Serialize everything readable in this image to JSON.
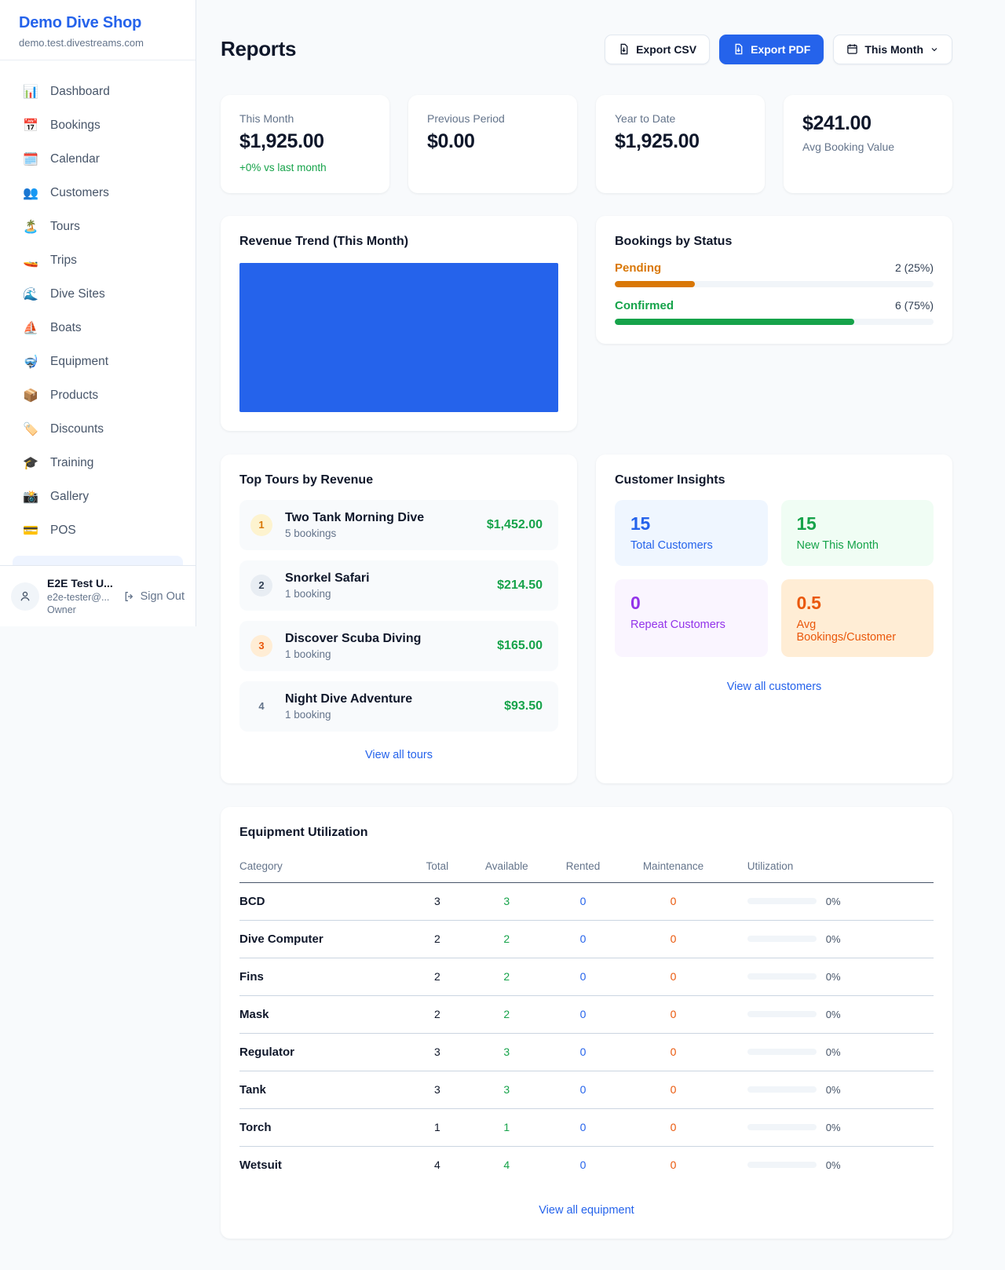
{
  "colors": {
    "primary": "#2563eb",
    "green": "#16a34a",
    "amber": "#d97706",
    "orange": "#ea580c",
    "purple": "#9333ea"
  },
  "sidebar": {
    "brand": {
      "name": "Demo Dive Shop",
      "domain": "demo.test.divestreams.com"
    },
    "items": [
      {
        "slug": "dashboard",
        "icon": "📊",
        "label": "Dashboard"
      },
      {
        "slug": "bookings",
        "icon": "📅",
        "label": "Bookings"
      },
      {
        "slug": "calendar",
        "icon": "🗓️",
        "label": "Calendar"
      },
      {
        "slug": "customers",
        "icon": "👥",
        "label": "Customers"
      },
      {
        "slug": "tours",
        "icon": "🏝️",
        "label": "Tours"
      },
      {
        "slug": "trips",
        "icon": "🚤",
        "label": "Trips"
      },
      {
        "slug": "dive-sites",
        "icon": "🌊",
        "label": "Dive Sites"
      },
      {
        "slug": "boats",
        "icon": "⛵",
        "label": "Boats"
      },
      {
        "slug": "equipment",
        "icon": "🤿",
        "label": "Equipment"
      },
      {
        "slug": "products",
        "icon": "📦",
        "label": "Products"
      },
      {
        "slug": "discounts",
        "icon": "🏷️",
        "label": "Discounts"
      },
      {
        "slug": "training",
        "icon": "🎓",
        "label": "Training"
      },
      {
        "slug": "gallery",
        "icon": "📸",
        "label": "Gallery"
      },
      {
        "slug": "pos",
        "icon": "💳",
        "label": "POS"
      }
    ],
    "user": {
      "name": "E2E Test U...",
      "email": "e2e-tester@...",
      "role": "Owner",
      "signout_label": "Sign Out"
    }
  },
  "header": {
    "title": "Reports",
    "export_csv_label": "Export CSV",
    "export_pdf_label": "Export PDF",
    "period_label": "This Month"
  },
  "stats": [
    {
      "label": "This Month",
      "value": "$1,925.00",
      "delta": "+0% vs last month"
    },
    {
      "label": "Previous Period",
      "value": "$0.00"
    },
    {
      "label": "Year to Date",
      "value": "$1,925.00"
    },
    {
      "label": "Avg Booking Value",
      "value": "$241.00",
      "value_first": true
    }
  ],
  "revenue_trend": {
    "title": "Revenue Trend (This Month)",
    "chart_data": {
      "type": "bar",
      "categories": [
        "This Month"
      ],
      "values": [
        1925
      ],
      "bar_color": "#2563eb",
      "note": "single full-height bar filling plot area"
    }
  },
  "bookings_status": {
    "title": "Bookings by Status",
    "rows": [
      {
        "label": "Pending",
        "value_text": "2 (25%)",
        "percent": 25,
        "color": "#d97706"
      },
      {
        "label": "Confirmed",
        "value_text": "6 (75%)",
        "percent": 75,
        "color": "#16a34a"
      }
    ]
  },
  "top_tours": {
    "title": "Top Tours by Revenue",
    "view_all": "View all tours",
    "items": [
      {
        "rank": "1",
        "name": "Two Tank Morning Dive",
        "bookings": "5 bookings",
        "amount": "$1,452.00"
      },
      {
        "rank": "2",
        "name": "Snorkel Safari",
        "bookings": "1 booking",
        "amount": "$214.50"
      },
      {
        "rank": "3",
        "name": "Discover Scuba Diving",
        "bookings": "1 booking",
        "amount": "$165.00"
      },
      {
        "rank": "4",
        "name": "Night Dive Adventure",
        "bookings": "1 booking",
        "amount": "$93.50"
      }
    ]
  },
  "customer_insights": {
    "title": "Customer Insights",
    "view_all": "View all customers",
    "tiles": [
      {
        "value": "15",
        "label": "Total Customers",
        "fg": "#2563eb",
        "bg": "#eff6ff"
      },
      {
        "value": "15",
        "label": "New This Month",
        "fg": "#16a34a",
        "bg": "#f0fdf4"
      },
      {
        "value": "0",
        "label": "Repeat Customers",
        "fg": "#9333ea",
        "bg": "#faf5ff"
      },
      {
        "value": "0.5",
        "label": "Avg Bookings/Customer",
        "fg": "#ea580c",
        "bg": "#ffedd5"
      }
    ]
  },
  "equipment": {
    "title": "Equipment Utilization",
    "view_all": "View all equipment",
    "columns": [
      "Category",
      "Total",
      "Available",
      "Rented",
      "Maintenance",
      "Utilization"
    ],
    "rows": [
      {
        "category": "BCD",
        "total": "3",
        "available": "3",
        "rented": "0",
        "maintenance": "0",
        "utilization": "0%",
        "utilization_pct": 0
      },
      {
        "category": "Dive Computer",
        "total": "2",
        "available": "2",
        "rented": "0",
        "maintenance": "0",
        "utilization": "0%",
        "utilization_pct": 0
      },
      {
        "category": "Fins",
        "total": "2",
        "available": "2",
        "rented": "0",
        "maintenance": "0",
        "utilization": "0%",
        "utilization_pct": 0
      },
      {
        "category": "Mask",
        "total": "2",
        "available": "2",
        "rented": "0",
        "maintenance": "0",
        "utilization": "0%",
        "utilization_pct": 0
      },
      {
        "category": "Regulator",
        "total": "3",
        "available": "3",
        "rented": "0",
        "maintenance": "0",
        "utilization": "0%",
        "utilization_pct": 0
      },
      {
        "category": "Tank",
        "total": "3",
        "available": "3",
        "rented": "0",
        "maintenance": "0",
        "utilization": "0%",
        "utilization_pct": 0
      },
      {
        "category": "Torch",
        "total": "1",
        "available": "1",
        "rented": "0",
        "maintenance": "0",
        "utilization": "0%",
        "utilization_pct": 0
      },
      {
        "category": "Wetsuit",
        "total": "4",
        "available": "4",
        "rented": "0",
        "maintenance": "0",
        "utilization": "0%",
        "utilization_pct": 0
      }
    ]
  }
}
